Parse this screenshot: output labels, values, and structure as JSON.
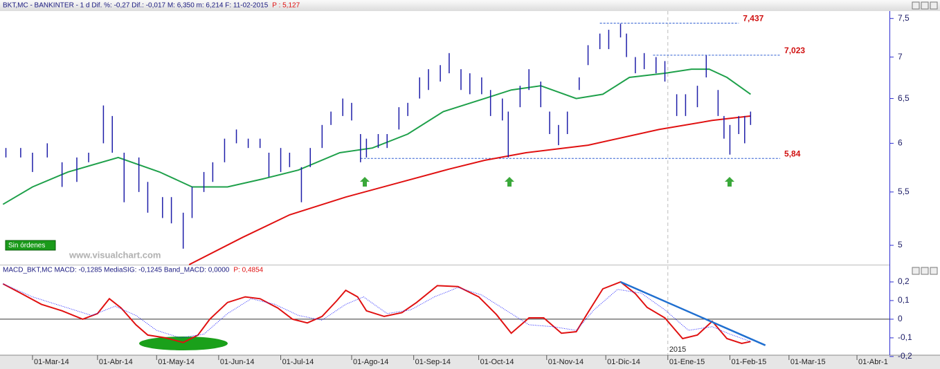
{
  "x_axis": {
    "xlim": [
      -11,
      290
    ],
    "xticks": [
      {
        "value": 0,
        "label": "01-Mar-14"
      },
      {
        "value": 22,
        "label": "01-Abr-14"
      },
      {
        "value": 42,
        "label": "01-May-14"
      },
      {
        "value": 63,
        "label": "01-Jun-14"
      },
      {
        "value": 84,
        "label": "01-Jul-14"
      },
      {
        "value": 108,
        "label": "01-Ago-14"
      },
      {
        "value": 129,
        "label": "01-Sep-14"
      },
      {
        "value": 151,
        "label": "01-Oct-14"
      },
      {
        "value": 174,
        "label": "01-Nov-14"
      },
      {
        "value": 194,
        "label": "01-Dic-14"
      },
      {
        "value": 215,
        "label": "01-Ene-15"
      },
      {
        "value": 236,
        "label": "01-Feb-15"
      },
      {
        "value": 256,
        "label": "01-Mar-15"
      },
      {
        "value": 279,
        "label": "01-Abr-1"
      }
    ],
    "year_marker": {
      "value": 215,
      "label": "2015"
    }
  },
  "button": "Sin órdenes",
  "watermark": "www.visualchart.com",
  "chart_data": [
    {
      "type": "ohlc",
      "title": "BKT,MC - BANKINTER -  1 d Dif. %: -0,27 Dif.: -0,017 M: 6,350 m: 6,214 F: 11-02-2015",
      "subtitle": "P : 5,127",
      "log": true,
      "ylim": [
        4.83,
        7.6
      ],
      "yticks": [
        5,
        {
          "value": 5.5,
          "label": "5,5"
        },
        6,
        {
          "value": 6.5,
          "label": "6,5"
        },
        7,
        {
          "value": 7.5,
          "label": "7,5"
        }
      ],
      "bars": {
        "color": "#1c1ca8",
        "x": [
          -9,
          -4,
          0,
          5,
          10,
          15,
          19,
          24,
          27,
          31,
          36,
          39,
          44,
          47,
          51,
          54,
          58,
          61,
          65,
          69,
          73,
          77,
          80,
          84,
          87,
          91,
          94,
          98,
          101,
          105,
          108,
          111,
          113,
          117,
          120,
          124,
          127,
          131,
          134,
          138,
          141,
          145,
          148,
          152,
          155,
          159,
          161,
          165,
          168,
          172,
          175,
          178,
          181,
          185,
          188,
          192,
          195,
          199,
          201,
          204,
          207,
          211,
          214,
          218,
          221,
          225,
          228,
          232,
          234,
          236,
          239,
          241,
          243
        ],
        "high": [
          5.95,
          5.95,
          5.9,
          6.0,
          5.8,
          5.85,
          5.9,
          6.42,
          6.3,
          5.9,
          5.85,
          5.6,
          5.45,
          5.45,
          5.3,
          5.55,
          5.7,
          5.8,
          6.05,
          6.15,
          6.05,
          6.05,
          5.9,
          5.95,
          5.9,
          5.75,
          5.95,
          6.2,
          6.35,
          6.5,
          6.45,
          6.1,
          6.05,
          6.1,
          6.1,
          6.4,
          6.45,
          6.75,
          6.85,
          6.9,
          7.05,
          6.85,
          6.8,
          6.75,
          6.6,
          6.5,
          6.35,
          6.65,
          6.85,
          6.7,
          6.35,
          6.2,
          6.35,
          6.75,
          7.15,
          7.3,
          7.35,
          7.43,
          7.3,
          7.0,
          7.05,
          7.0,
          6.95,
          6.55,
          6.55,
          6.65,
          7.02,
          6.6,
          6.3,
          6.2,
          6.3,
          6.3,
          6.35
        ],
        "low": [
          5.85,
          5.85,
          5.7,
          5.85,
          5.55,
          5.6,
          5.8,
          6.0,
          5.9,
          5.4,
          5.5,
          5.3,
          5.25,
          5.2,
          4.97,
          5.25,
          5.5,
          5.6,
          5.8,
          6.0,
          5.95,
          5.95,
          5.65,
          5.7,
          5.75,
          5.4,
          5.75,
          5.95,
          6.2,
          6.3,
          6.25,
          5.8,
          5.85,
          5.95,
          5.95,
          6.15,
          6.3,
          6.5,
          6.6,
          6.7,
          6.8,
          6.6,
          6.55,
          6.55,
          6.3,
          6.25,
          5.85,
          6.4,
          6.6,
          6.4,
          6.1,
          5.98,
          6.1,
          6.6,
          6.9,
          7.1,
          7.1,
          7.25,
          7.0,
          6.8,
          6.85,
          6.8,
          6.7,
          6.3,
          6.3,
          6.4,
          6.75,
          6.3,
          6.05,
          5.88,
          6.1,
          6.0,
          6.2
        ]
      },
      "series": [
        {
          "color": "#1ea04a",
          "x": [
            -10,
            0,
            12,
            29,
            43,
            54,
            66,
            78,
            90,
            104,
            115,
            127,
            139,
            153,
            162,
            172,
            184,
            193,
            202,
            214,
            223,
            229,
            235,
            243
          ],
          "values": [
            5.38,
            5.55,
            5.7,
            5.85,
            5.7,
            5.55,
            5.55,
            5.63,
            5.72,
            5.9,
            5.95,
            6.1,
            6.35,
            6.5,
            6.6,
            6.65,
            6.5,
            6.55,
            6.75,
            6.8,
            6.85,
            6.85,
            6.75,
            6.55
          ]
        },
        {
          "color": "#e01010",
          "x": [
            53,
            71,
            87,
            106,
            125,
            141,
            153,
            167,
            188,
            212,
            230,
            243
          ],
          "values": [
            4.83,
            5.07,
            5.28,
            5.45,
            5.6,
            5.73,
            5.82,
            5.9,
            5.98,
            6.15,
            6.25,
            6.3
          ]
        }
      ],
      "levels": [
        {
          "value": 7.437,
          "label": "7,437",
          "x": [
            192,
            239
          ]
        },
        {
          "value": 7.023,
          "label": "7,023",
          "x": [
            210,
            253
          ]
        },
        {
          "value": 5.84,
          "label": "5,84",
          "x": [
            111,
            253
          ]
        }
      ]
    },
    {
      "type": "line",
      "title": "MACD_BKT,MC MACD: -0,1285 MediaSIG: -0,1245 Band_MACD: 0,0000",
      "subtitle": "P: 0,4854",
      "ylim": [
        -0.193,
        0.237
      ],
      "yticks": [
        {
          "value": 0.2,
          "label": "0,2"
        },
        {
          "value": 0.1,
          "label": "0,1"
        },
        0,
        {
          "value": -0.1,
          "label": "-0,1"
        },
        {
          "value": -0.2,
          "label": "-0,2"
        }
      ],
      "series": [
        {
          "color": "#e01010",
          "x": [
            -10,
            -4,
            3,
            10,
            17,
            22,
            26,
            30,
            35,
            39,
            45,
            51,
            56,
            60,
            66,
            72,
            77,
            83,
            88,
            93,
            98,
            103,
            106,
            110,
            113,
            119,
            125,
            130,
            137,
            144,
            151,
            157,
            162,
            168,
            173,
            179,
            184,
            188,
            193,
            199,
            204,
            208,
            214,
            220,
            225,
            230,
            235,
            240,
            243
          ],
          "values": [
            0.19,
            0.14,
            0.08,
            0.045,
            0,
            0.03,
            0.11,
            0.06,
            -0.03,
            -0.085,
            -0.1,
            -0.125,
            -0.085,
            0,
            0.09,
            0.12,
            0.11,
            0.06,
            0,
            -0.02,
            0.015,
            0.1,
            0.155,
            0.12,
            0.045,
            0.015,
            0.035,
            0.09,
            0.18,
            0.175,
            0.12,
            0.025,
            -0.075,
            0.007,
            0.007,
            -0.075,
            -0.067,
            0.037,
            0.163,
            0.2,
            0.137,
            0.063,
            0.007,
            -0.104,
            -0.085,
            -0.011,
            -0.104,
            -0.13,
            -0.12
          ]
        },
        {
          "color": "#2020ff",
          "dotted": true,
          "x": [
            -10,
            0,
            10,
            20,
            28,
            35,
            42,
            50,
            58,
            66,
            74,
            82,
            90,
            98,
            106,
            112,
            120,
            128,
            136,
            144,
            152,
            160,
            168,
            176,
            184,
            190,
            198,
            206,
            214,
            222,
            230,
            236,
            243
          ],
          "values": [
            0.19,
            0.12,
            0.07,
            0.02,
            0.07,
            0.02,
            -0.06,
            -0.1,
            -0.08,
            0.03,
            0.11,
            0.08,
            0.02,
            -0.005,
            0.08,
            0.12,
            0.03,
            0.05,
            0.12,
            0.17,
            0.13,
            0.05,
            -0.03,
            -0.04,
            -0.06,
            0.05,
            0.16,
            0.14,
            0.05,
            -0.06,
            -0.04,
            -0.08,
            -0.12
          ]
        }
      ],
      "trendline": {
        "color": "#1f6fd0",
        "x": [
          199,
          248
        ],
        "values": [
          0.2,
          -0.14
        ]
      }
    }
  ]
}
